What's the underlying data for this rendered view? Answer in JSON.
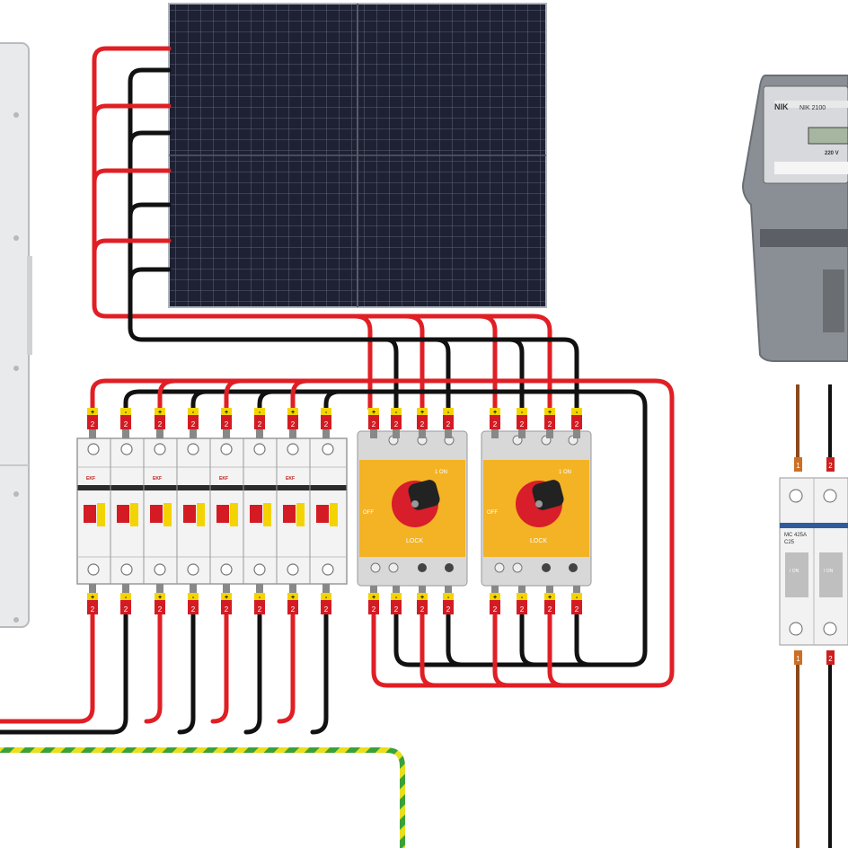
{
  "palette": {
    "wire_red": "#e01f25",
    "wire_black": "#111111",
    "wire_brown": "#8b4a1c",
    "earth_green": "#3aa13a",
    "earth_yellow": "#e9df1e",
    "panel_cell": "#1d2133",
    "switch_yellow": "#f4b324",
    "switch_handle": "#d81e2a",
    "breaker_white": "#f3f3f3",
    "ferrule_yellow": "#f4d400",
    "ferrule_red": "#d41b23",
    "inverter_gray": "#e9eaeb",
    "meter_gray": "#8a8f95"
  },
  "breakers": {
    "brand": "EKF",
    "count": 8
  },
  "disconnects": {
    "count": 2,
    "on_label": "1 ON",
    "off_label": "OFF",
    "lock_label": "LOCK"
  },
  "ferrules": {
    "size": "2",
    "plus": "+",
    "minus": "-"
  },
  "meter": {
    "brand": "NIK",
    "model": "NIK 2100",
    "voltage": "220 V"
  },
  "ac_breaker": {
    "model": "MC 425A",
    "rating": "C25",
    "on_label": "I ON",
    "ferrule_left": "1",
    "ferrule_right": "2"
  }
}
